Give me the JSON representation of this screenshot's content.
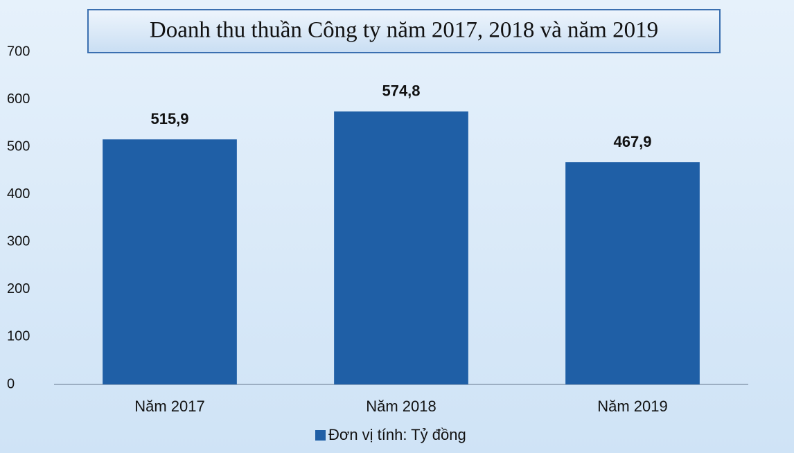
{
  "chart_data": {
    "type": "bar",
    "title": "Doanh thu thuần Công ty năm 2017, 2018 và năm 2019",
    "categories": [
      "Năm 2017",
      "Năm 2018",
      "Năm 2019"
    ],
    "series": [
      {
        "name": "Đơn vị tính: Tỷ đồng",
        "color": "#1f5fa6",
        "values": [
          515.9,
          574.8,
          467.9
        ],
        "value_labels": [
          "515,9",
          "574,8",
          "467,9"
        ]
      }
    ],
    "ylim": [
      0,
      700
    ],
    "yticks": [
      0,
      100,
      200,
      300,
      400,
      500,
      600,
      700
    ],
    "grid": false,
    "legend": "bottom"
  }
}
